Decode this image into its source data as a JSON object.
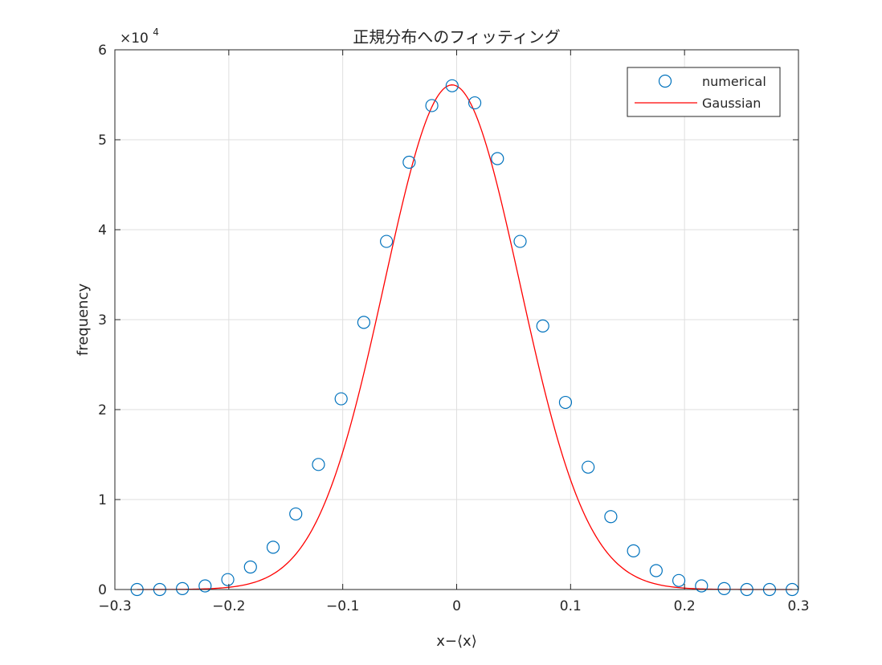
{
  "chart_data": {
    "type": "scatter",
    "title": "正規分布へのフィッティング",
    "xlabel": "x−⟨x⟩",
    "ylabel": "frequency",
    "xlim": [
      -0.3,
      0.3
    ],
    "ylim": [
      0,
      60000
    ],
    "xticks": [
      -0.3,
      -0.2,
      -0.1,
      0,
      0.1,
      0.2,
      0.3
    ],
    "xtick_labels": [
      "−0.3",
      "−0.2",
      "−0.1",
      "0",
      "0.1",
      "0.2",
      "0.3"
    ],
    "yticks": [
      0,
      10000,
      20000,
      30000,
      40000,
      50000,
      60000
    ],
    "ytick_labels": [
      "0",
      "1",
      "2",
      "3",
      "4",
      "5",
      "6"
    ],
    "y_exponent": {
      "base": "×10",
      "power": "4"
    },
    "grid": true,
    "legend_position": "top-right",
    "series": [
      {
        "name": "numerical",
        "kind": "markers",
        "marker": "circle",
        "color": "#0072BD",
        "x": [
          -0.2805,
          -0.2606,
          -0.2407,
          -0.2208,
          -0.2009,
          -0.181,
          -0.1611,
          -0.1412,
          -0.1213,
          -0.1014,
          -0.0815,
          -0.0616,
          -0.0417,
          -0.0218,
          -0.004,
          0.0159,
          0.0358,
          0.0557,
          0.0756,
          0.0955,
          0.1154,
          0.1353,
          0.1552,
          0.1751,
          0.195,
          0.2149,
          0.2348,
          0.2547,
          0.2746,
          0.2945
        ],
        "y": [
          0,
          0,
          100,
          400,
          1100,
          2500,
          4700,
          8400,
          13900,
          21200,
          29700,
          38700,
          47500,
          53800,
          56000,
          54100,
          47900,
          38700,
          29300,
          20800,
          13600,
          8100,
          4300,
          2100,
          1000,
          400,
          100,
          0,
          0,
          0
        ]
      },
      {
        "name": "Gaussian",
        "kind": "line",
        "color": "#FF0000",
        "curve": {
          "amplitude": 56100,
          "mean": -0.004,
          "sigma": 0.0595
        }
      }
    ]
  }
}
